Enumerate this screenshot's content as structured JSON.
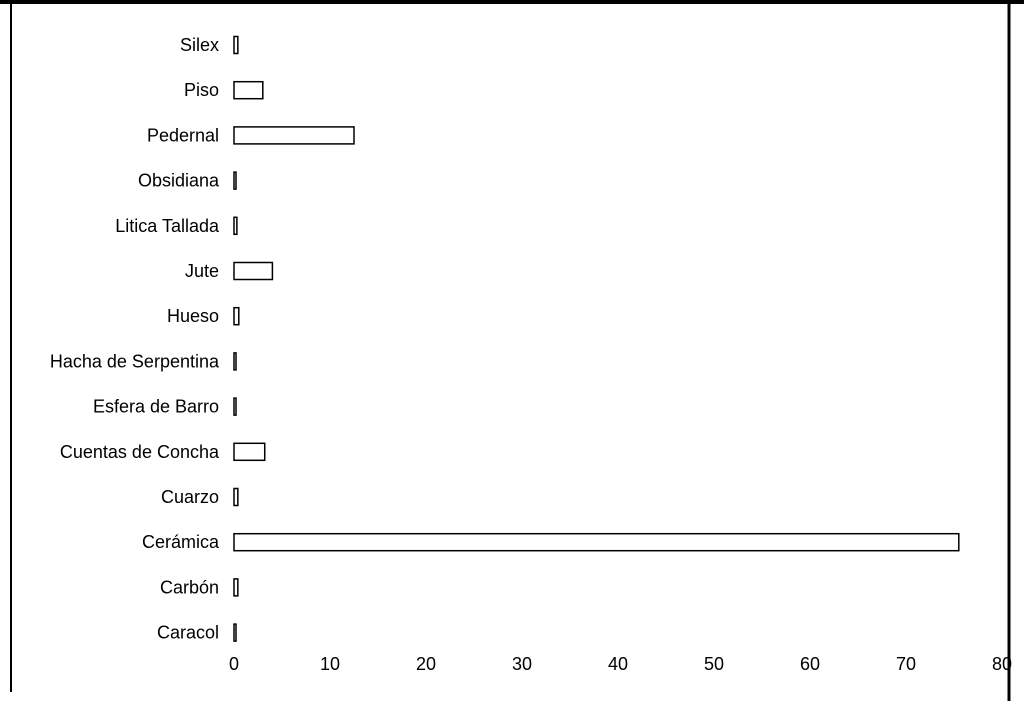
{
  "chart_data": {
    "type": "bar",
    "orientation": "horizontal",
    "title": "",
    "xlabel": "",
    "ylabel": "",
    "categories": [
      "Silex",
      "Piso",
      "Pedernal",
      "Obsidiana",
      "Litica Tallada",
      "Jute",
      "Hueso",
      "Hacha de Serpentina",
      "Esfera de Barro",
      "Cuentas de Concha",
      "Cuarzo",
      "Cerámica",
      "Carbón",
      "Caracol"
    ],
    "values": [
      0.4,
      3,
      12.5,
      0.2,
      0.3,
      4,
      0.5,
      0.2,
      0.2,
      3.2,
      0.4,
      75.5,
      0.4,
      0.2
    ],
    "xlim": [
      0,
      80
    ],
    "xticks": [
      0,
      10,
      20,
      30,
      40,
      50,
      60,
      70,
      80
    ],
    "grid": false,
    "legend": "none",
    "bar_fill": "#ffffff",
    "bar_stroke": "#000000"
  }
}
